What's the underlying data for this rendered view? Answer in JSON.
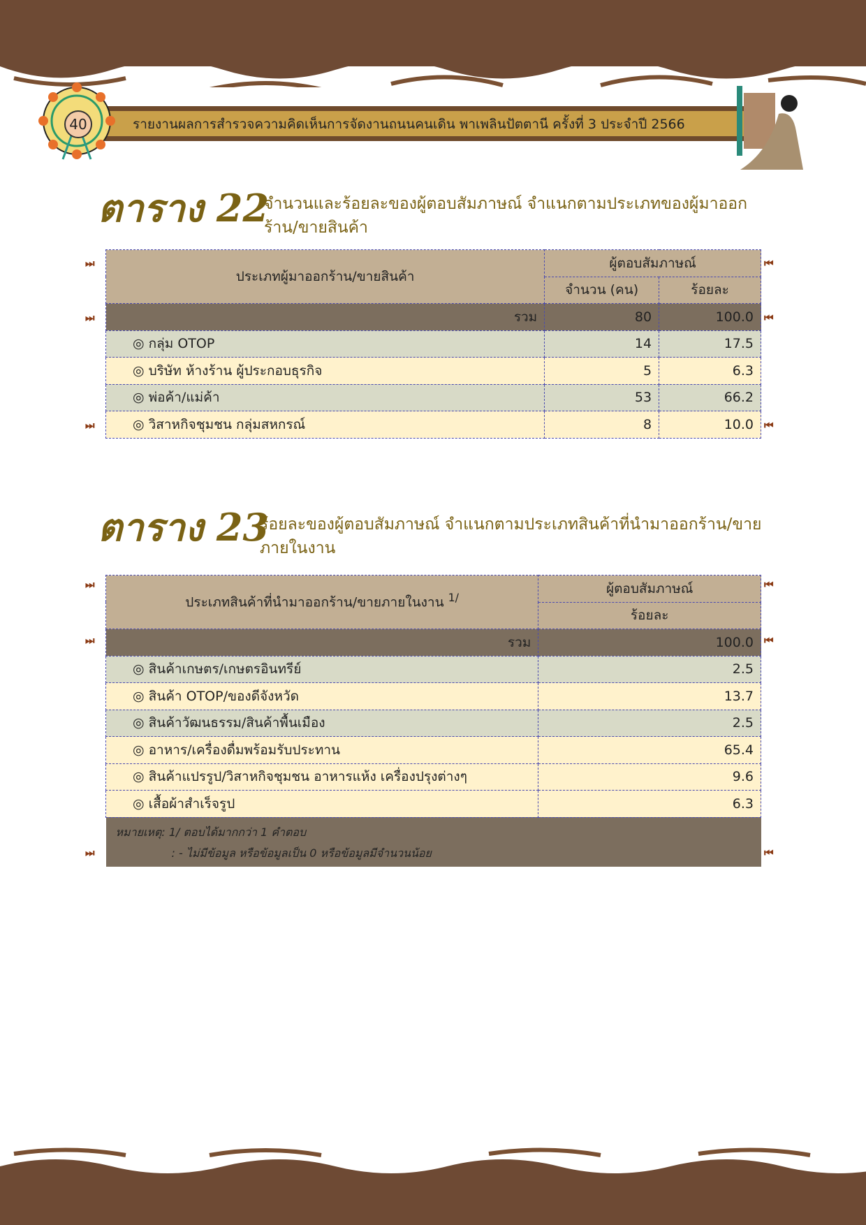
{
  "header": {
    "page_number": "40",
    "title": "รายงานผลการสำรวจความคิดเห็นการจัดงานถนนคนเดิน พาเพลินปัตตานี ครั้งที่ 3 ประจำปี 2566"
  },
  "table22": {
    "label": "ตาราง 22",
    "caption": "จำนวนและร้อยละของผู้ตอบสัมภาษณ์ จำแนกตามประเภทของผู้มาออกร้าน/ขายสินค้า",
    "col_type": "ประเภทผู้มาออกร้าน/ขายสินค้า",
    "col_group": "ผู้ตอบสัมภาษณ์",
    "col_count": "จำนวน (คน)",
    "col_pct": "ร้อยละ",
    "total": {
      "label": "รวม",
      "count": "80",
      "pct": "100.0"
    },
    "rows": [
      {
        "label": "◎  กลุ่ม OTOP",
        "count": "14",
        "pct": "17.5"
      },
      {
        "label": "◎  บริษัท ห้างร้าน ผู้ประกอบธุรกิจ",
        "count": "5",
        "pct": "6.3"
      },
      {
        "label": "◎  พ่อค้า/แม่ค้า",
        "count": "53",
        "pct": "66.2"
      },
      {
        "label": "◎  วิสาหกิจชุมชน กลุ่มสหกรณ์",
        "count": "8",
        "pct": "10.0"
      }
    ]
  },
  "table23": {
    "label": "ตาราง 23",
    "caption": "ร้อยละของผู้ตอบสัมภาษณ์ จำแนกตามประเภทสินค้าที่นำมาออกร้าน/ขายภายในงาน",
    "col_type": "ประเภทสินค้าที่นำมาออกร้าน/ขายภายในงาน",
    "col_type_sup": "1/",
    "col_group": "ผู้ตอบสัมภาษณ์",
    "col_pct": "ร้อยละ",
    "total": {
      "label": "รวม",
      "pct": "100.0"
    },
    "rows": [
      {
        "label": "◎  สินค้าเกษตร/เกษตรอินทรีย์",
        "pct": "2.5"
      },
      {
        "label": "◎  สินค้า OTOP/ของดีจังหวัด",
        "pct": "13.7"
      },
      {
        "label": "◎  สินค้าวัฒนธรรม/สินค้าพื้นเมือง",
        "pct": "2.5"
      },
      {
        "label": "◎  อาหาร/เครื่องดื่มพร้อมรับประทาน",
        "pct": "65.4"
      },
      {
        "label": "◎  สินค้าแปรรูป/วิสาหกิจชุมชน อาหารแห้ง เครื่องปรุงต่างๆ",
        "pct": "9.6"
      },
      {
        "label": "◎  เสื้อผ้าสำเร็จรูป",
        "pct": "6.3"
      }
    ],
    "note1": "หมายเหตุ: 1/ ตอบได้มากกว่า 1 คำตอบ",
    "note2": ": - ไม่มีข้อมูล หรือข้อมูลเป็น 0 หรือข้อมูลมีจำนวนน้อย"
  },
  "marker_left": "⏭",
  "marker_right": "⏮"
}
